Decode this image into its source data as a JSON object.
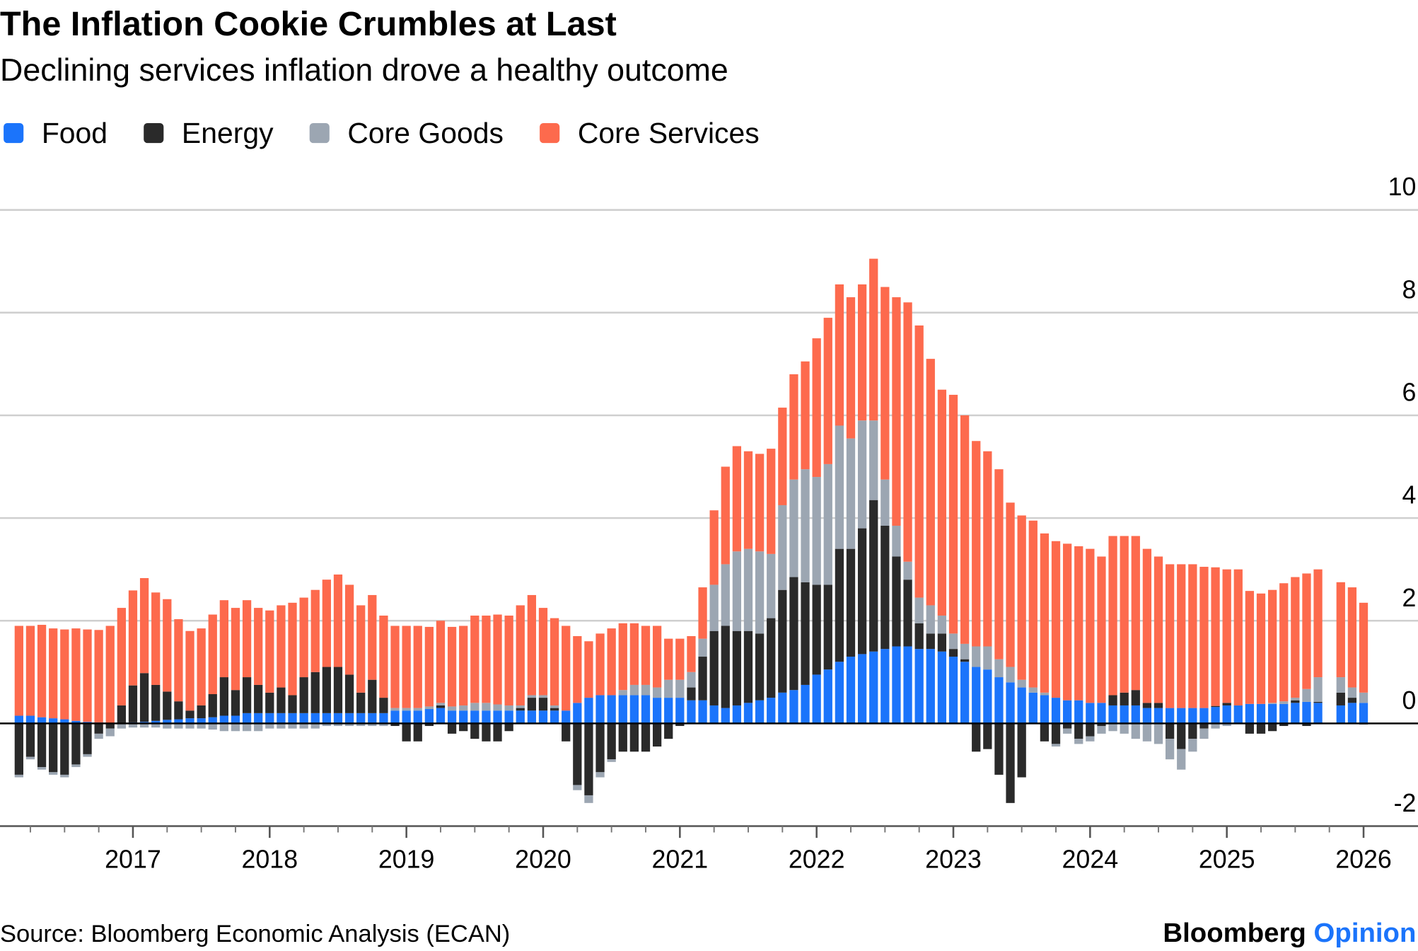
{
  "chart_data": {
    "type": "stacked-bar",
    "title": "The Inflation Cookie Crumbles at Last",
    "subtitle": "Declining services inflation drove a healthy outcome",
    "source": "Source: Bloomberg Economic Analysis (ECAN)",
    "brand": {
      "name": "Bloomberg",
      "tag": "Opinion"
    },
    "categories": [
      null,
      null,
      null,
      null,
      null,
      null,
      null,
      null,
      null,
      null,
      "2017",
      null,
      null,
      null,
      null,
      null,
      null,
      null,
      null,
      null,
      null,
      null,
      "2018",
      null,
      null,
      null,
      null,
      null,
      null,
      null,
      null,
      null,
      null,
      null,
      "2019",
      null,
      null,
      null,
      null,
      null,
      null,
      null,
      null,
      null,
      null,
      null,
      "2020",
      null,
      null,
      null,
      null,
      null,
      null,
      null,
      null,
      null,
      null,
      null,
      "2021",
      null,
      null,
      null,
      null,
      null,
      null,
      null,
      null,
      null,
      null,
      null,
      "2022",
      null,
      null,
      null,
      null,
      null,
      null,
      null,
      null,
      null,
      null,
      null,
      "2023",
      null,
      null,
      null,
      null,
      null,
      null,
      null,
      null,
      null,
      null,
      null,
      "2024",
      null,
      null,
      null,
      null,
      null,
      null,
      null,
      null,
      null,
      null,
      null,
      "2025",
      null,
      null,
      null,
      null,
      null,
      null,
      null,
      null,
      null,
      null,
      null,
      "2026"
    ],
    "series": [
      {
        "name": "Food",
        "color": "#1b74fb",
        "values": [
          0.15,
          0.15,
          0.12,
          0.1,
          0.08,
          0.05,
          0.03,
          0.02,
          0,
          0,
          0.02,
          0.03,
          0.05,
          0.07,
          0.08,
          0.1,
          0.1,
          0.12,
          0.15,
          0.15,
          0.2,
          0.2,
          0.2,
          0.2,
          0.2,
          0.2,
          0.2,
          0.2,
          0.2,
          0.2,
          0.2,
          0.2,
          0.2,
          0.25,
          0.25,
          0.25,
          0.28,
          0.3,
          0.25,
          0.25,
          0.25,
          0.25,
          0.25,
          0.25,
          0.25,
          0.25,
          0.25,
          0.25,
          0.25,
          0.4,
          0.5,
          0.55,
          0.55,
          0.55,
          0.55,
          0.55,
          0.5,
          0.5,
          0.5,
          0.45,
          0.45,
          0.35,
          0.3,
          0.35,
          0.4,
          0.45,
          0.5,
          0.6,
          0.65,
          0.75,
          0.95,
          1.05,
          1.2,
          1.3,
          1.35,
          1.4,
          1.45,
          1.5,
          1.5,
          1.45,
          1.45,
          1.4,
          1.3,
          1.2,
          1.1,
          1.05,
          0.9,
          0.8,
          0.7,
          0.6,
          0.55,
          0.5,
          0.45,
          0.45,
          0.4,
          0.4,
          0.35,
          0.35,
          0.35,
          0.3,
          0.3,
          0.3,
          0.3,
          0.3,
          0.3,
          0.32,
          0.35,
          0.35,
          0.38,
          0.38,
          0.38,
          0.38,
          0.4,
          0.42,
          0.4,
          null,
          0.35,
          0.4,
          0.4
        ]
      },
      {
        "name": "Energy",
        "color": "#2a2a2a",
        "values": [
          -1.0,
          -0.65,
          -0.85,
          -0.95,
          -1.0,
          -0.8,
          -0.6,
          -0.2,
          -0.1,
          0.35,
          0.72,
          0.95,
          0.7,
          0.55,
          0.35,
          0.15,
          0.25,
          0.45,
          0.75,
          0.5,
          0.7,
          0.55,
          0.4,
          0.5,
          0.35,
          0.7,
          0.8,
          0.9,
          0.9,
          0.75,
          0.4,
          0.65,
          0.3,
          -0.05,
          -0.35,
          -0.35,
          -0.05,
          0.05,
          -0.2,
          -0.15,
          -0.3,
          -0.35,
          -0.35,
          -0.15,
          0.05,
          0.25,
          0.25,
          0.05,
          -0.35,
          -1.2,
          -1.4,
          -0.95,
          -0.7,
          -0.55,
          -0.55,
          -0.55,
          -0.45,
          -0.3,
          -0.05,
          0.25,
          0.85,
          1.45,
          1.6,
          1.45,
          1.4,
          1.3,
          1.55,
          2.0,
          2.2,
          2.0,
          1.75,
          1.65,
          2.2,
          2.1,
          2.45,
          2.95,
          2.4,
          1.75,
          1.3,
          0.5,
          0.3,
          0.35,
          0.15,
          0.05,
          -0.55,
          -0.5,
          -1.0,
          -1.55,
          -1.05,
          0,
          -0.35,
          -0.4,
          -0.1,
          -0.3,
          -0.25,
          -0.05,
          0.2,
          0.25,
          0.3,
          0.1,
          0.1,
          -0.3,
          -0.5,
          -0.3,
          -0.1,
          0.02,
          0.05,
          0,
          -0.2,
          -0.2,
          -0.15,
          -0.05,
          0.05,
          -0.05,
          0.02,
          null,
          0.25,
          0.1,
          -0.02
        ]
      },
      {
        "name": "Core Goods",
        "color": "#9ca6b2",
        "values": [
          -0.05,
          -0.05,
          -0.05,
          -0.05,
          -0.05,
          -0.05,
          -0.05,
          -0.1,
          -0.15,
          -0.1,
          -0.08,
          -0.08,
          -0.08,
          -0.1,
          -0.1,
          -0.1,
          -0.1,
          -0.12,
          -0.15,
          -0.15,
          -0.15,
          -0.15,
          -0.1,
          -0.1,
          -0.1,
          -0.1,
          -0.1,
          -0.05,
          -0.05,
          -0.05,
          -0.05,
          -0.05,
          -0.05,
          0.05,
          0.05,
          0.05,
          0.05,
          0.05,
          0.08,
          0.1,
          0.15,
          0.15,
          0.12,
          0.1,
          0.05,
          0.05,
          0.05,
          0.05,
          0,
          -0.1,
          -0.15,
          -0.1,
          -0.05,
          0.1,
          0.2,
          0.2,
          0.2,
          0.35,
          0.35,
          0.3,
          0.35,
          0.9,
          1.2,
          1.55,
          1.6,
          1.6,
          1.25,
          1.65,
          1.9,
          2.2,
          2.1,
          2.35,
          2.4,
          2.15,
          2.1,
          1.55,
          0.9,
          0.6,
          0.35,
          0.5,
          0.55,
          0.35,
          0.3,
          0.3,
          0.4,
          0.45,
          0.35,
          0.3,
          0.15,
          0.1,
          0.05,
          -0.05,
          -0.1,
          -0.1,
          -0.1,
          -0.15,
          -0.15,
          -0.2,
          -0.3,
          -0.35,
          -0.4,
          -0.4,
          -0.4,
          -0.25,
          -0.2,
          -0.1,
          -0.05,
          0,
          0,
          0,
          0.02,
          0.05,
          0.05,
          0.25,
          0.48,
          null,
          0.3,
          0.2,
          0.2
        ]
      },
      {
        "name": "Core Services",
        "color": "#fd6a4d",
        "values": [
          1.75,
          1.75,
          1.8,
          1.75,
          1.75,
          1.8,
          1.8,
          1.8,
          1.9,
          1.9,
          1.85,
          1.85,
          1.8,
          1.8,
          1.6,
          1.55,
          1.5,
          1.55,
          1.5,
          1.6,
          1.5,
          1.5,
          1.6,
          1.6,
          1.8,
          1.55,
          1.6,
          1.7,
          1.8,
          1.75,
          1.7,
          1.65,
          1.6,
          1.6,
          1.6,
          1.6,
          1.55,
          1.6,
          1.55,
          1.55,
          1.7,
          1.7,
          1.75,
          1.75,
          1.95,
          1.95,
          1.7,
          1.7,
          1.65,
          1.3,
          1.1,
          1.2,
          1.3,
          1.3,
          1.2,
          1.15,
          1.2,
          0.8,
          0.8,
          0.7,
          1.0,
          1.45,
          1.9,
          2.05,
          1.9,
          1.9,
          2.05,
          1.9,
          2.05,
          2.1,
          2.7,
          2.85,
          2.75,
          2.75,
          2.65,
          3.15,
          3.75,
          4.45,
          5.05,
          5.3,
          4.8,
          4.4,
          4.65,
          4.45,
          4.0,
          3.8,
          3.7,
          3.2,
          3.2,
          3.25,
          3.1,
          3.05,
          3.05,
          3.0,
          3.0,
          2.85,
          3.1,
          3.05,
          3.0,
          3.0,
          2.85,
          2.8,
          2.8,
          2.8,
          2.75,
          2.7,
          2.6,
          2.65,
          2.2,
          2.15,
          2.2,
          2.3,
          2.35,
          2.25,
          2.1,
          null,
          1.85,
          1.95,
          1.75
        ]
      }
    ],
    "ylim": [
      -2,
      10
    ],
    "yticks": [
      -2,
      0,
      2,
      4,
      6,
      8,
      10
    ],
    "grid": true
  }
}
